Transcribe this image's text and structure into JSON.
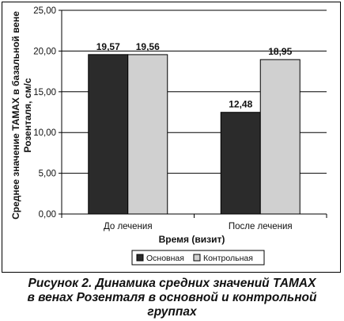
{
  "chart_data": {
    "type": "bar",
    "categories": [
      "До лечения",
      "После лечения"
    ],
    "series": [
      {
        "name": "Основная",
        "values": [
          19.57,
          12.48
        ],
        "labels": [
          "19,57",
          "12,48"
        ],
        "color": "#2b2b2b"
      },
      {
        "name": "Контрольная",
        "values": [
          19.56,
          18.95
        ],
        "labels": [
          "19,56",
          "18,95"
        ],
        "color": "#d0d0d0"
      }
    ],
    "xlabel": "Время (визит)",
    "ylabel": [
      "Среднее значение ТАМАХ в базальной вене",
      "Розенталя, см/с"
    ],
    "ylim": [
      0,
      25
    ],
    "yticks": [
      0,
      5,
      10,
      15,
      20,
      25
    ],
    "ytick_labels": [
      "0,00",
      "5,00",
      "10,00",
      "15,00",
      "20,00",
      "25,00"
    ],
    "grid": "horizontal",
    "legend_position": "bottom"
  },
  "caption": {
    "line1": "Рисунок 2. Динамика средних значений ТАМАХ",
    "line2": "в венах Розенталя в основной и контрольной",
    "line3": "группах"
  }
}
